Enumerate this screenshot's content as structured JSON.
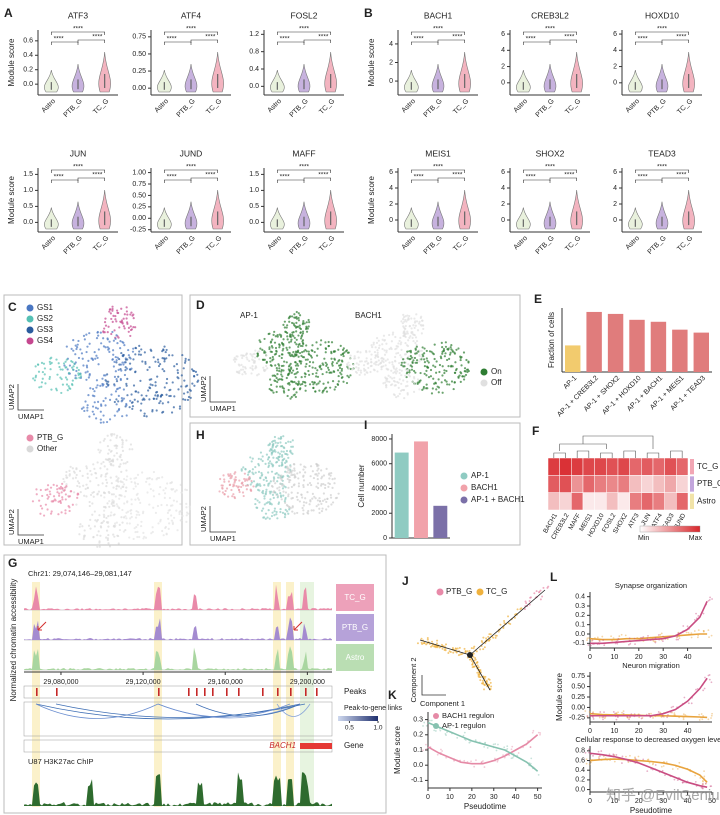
{
  "chart_data": [
    {
      "type": "violin",
      "panel": "A",
      "title": "ATF3",
      "ylabel": "Module score",
      "categories": [
        "Astro",
        "PTB_G",
        "TC_G"
      ],
      "colors": [
        "#e9f1dd",
        "#c7b2de",
        "#f3b4c0"
      ],
      "significance": "****",
      "ylim": [
        -0.15,
        0.75
      ],
      "yticks": [
        {
          "value": 0,
          "label": "0.0"
        },
        0.2,
        0.4,
        0.6
      ]
    },
    {
      "type": "violin",
      "title": "ATF4",
      "categories": [
        "Astro",
        "PTB_G",
        "TC_G"
      ],
      "colors": [
        "#e9f1dd",
        "#c7b2de",
        "#f3b4c0"
      ],
      "significance": "****",
      "ylim": [
        -0.1,
        0.85
      ],
      "yticks": [
        {
          "value": 0,
          "label": "0.00"
        },
        0.25,
        {
          "value": 0.5,
          "label": "0.50"
        },
        0.75
      ]
    },
    {
      "type": "violin",
      "title": "FOSL2",
      "categories": [
        "Astro",
        "PTB_G",
        "TC_G"
      ],
      "colors": [
        "#e9f1dd",
        "#c7b2de",
        "#f3b4c0"
      ],
      "significance": "****",
      "ylim": [
        -0.2,
        1.3
      ],
      "yticks": [
        {
          "value": 0,
          "label": "0.0"
        },
        0.4,
        0.8,
        1.2
      ]
    },
    {
      "type": "violin",
      "title": "JUN",
      "ylabel": "Module score",
      "categories": [
        "Astro",
        "PTB_G",
        "TC_G"
      ],
      "colors": [
        "#e9f1dd",
        "#c7b2de",
        "#f3b4c0"
      ],
      "significance": "****",
      "ylim": [
        -0.3,
        1.7
      ],
      "yticks": [
        {
          "value": 0,
          "label": "0.0"
        },
        0.5,
        {
          "value": 1,
          "label": "1.0"
        },
        1.5
      ]
    },
    {
      "type": "violin",
      "title": "JUND",
      "categories": [
        "Astro",
        "PTB_G",
        "TC_G"
      ],
      "colors": [
        "#e9f1dd",
        "#c7b2de",
        "#f3b4c0"
      ],
      "significance": "****",
      "ylim": [
        -0.3,
        1.1
      ],
      "yticks": [
        -0.25,
        {
          "value": 0,
          "label": "0.00"
        },
        0.25,
        {
          "value": 0.5,
          "label": "0.50"
        },
        0.75,
        {
          "value": 1,
          "label": "1.00"
        }
      ]
    },
    {
      "type": "violin",
      "title": "MAFF",
      "categories": [
        "Astro",
        "PTB_G",
        "TC_G"
      ],
      "colors": [
        "#e9f1dd",
        "#c7b2de",
        "#f3b4c0"
      ],
      "significance": "****",
      "ylim": [
        -0.3,
        1.7
      ],
      "yticks": [
        {
          "value": 0,
          "label": "0.0"
        },
        0.5,
        {
          "value": 1,
          "label": "1.0"
        },
        1.5
      ]
    },
    {
      "type": "violin",
      "panel": "B",
      "title": "BACH1",
      "ylabel": "Module score",
      "categories": [
        "Astro",
        "PTB_G",
        "TC_G"
      ],
      "colors": [
        "#e9f1dd",
        "#c7b2de",
        "#f3b4c0"
      ],
      "significance": "****",
      "ylim": [
        -1.5,
        5.5
      ],
      "yticks": [
        0,
        2,
        4
      ]
    },
    {
      "type": "violin",
      "title": "CREB3L2",
      "categories": [
        "Astro",
        "PTB_G",
        "TC_G"
      ],
      "colors": [
        "#e9f1dd",
        "#c7b2de",
        "#f3b4c0"
      ],
      "significance": "****",
      "ylim": [
        -1.5,
        6.5
      ],
      "yticks": [
        0,
        2,
        4,
        6
      ]
    },
    {
      "type": "violin",
      "title": "HOXD10",
      "categories": [
        "Astro",
        "PTB_G",
        "TC_G"
      ],
      "colors": [
        "#e9f1dd",
        "#c7b2de",
        "#f3b4c0"
      ],
      "significance": "****",
      "ylim": [
        -1.5,
        6.5
      ],
      "yticks": [
        0,
        2,
        4,
        6
      ]
    },
    {
      "type": "violin",
      "title": "MEIS1",
      "ylabel": "Module score",
      "categories": [
        "Astro",
        "PTB_G",
        "TC_G"
      ],
      "colors": [
        "#e9f1dd",
        "#c7b2de",
        "#f3b4c0"
      ],
      "significance": "****",
      "ylim": [
        -1.5,
        6.5
      ],
      "yticks": [
        0,
        2,
        4,
        6
      ]
    },
    {
      "type": "violin",
      "title": "SHOX2",
      "categories": [
        "Astro",
        "PTB_G",
        "TC_G"
      ],
      "colors": [
        "#e9f1dd",
        "#c7b2de",
        "#f3b4c0"
      ],
      "significance": "****",
      "ylim": [
        -1.5,
        6.5
      ],
      "yticks": [
        0,
        2,
        4,
        6
      ]
    },
    {
      "type": "violin",
      "title": "TEAD3",
      "categories": [
        "Astro",
        "PTB_G",
        "TC_G"
      ],
      "colors": [
        "#e9f1dd",
        "#c7b2de",
        "#f3b4c0"
      ],
      "significance": "****",
      "ylim": [
        -1.5,
        6.5
      ],
      "yticks": [
        0,
        2,
        4,
        6
      ]
    },
    {
      "type": "bar",
      "panel": "E",
      "ylabel": "Fraction of cells",
      "categories": [
        "AP-1",
        "AP-1 + CREB3L2",
        "AP-1 + SHOX2",
        "AP-1 + HOXD10",
        "AP-1 + BACH1",
        "AP-1 + MEIS1",
        "AP-1 + TEAD3"
      ],
      "values": [
        0.27,
        0.61,
        0.59,
        0.53,
        0.51,
        0.43,
        0.4
      ],
      "colors": [
        "#f2cb6e",
        "#e07c7c",
        "#e07c7c",
        "#e07c7c",
        "#e07c7c",
        "#e07c7c",
        "#e07c7c"
      ],
      "ylim": [
        0,
        0.65
      ]
    },
    {
      "type": "heatmap",
      "panel": "F",
      "rows": [
        "TC_G",
        "PTB_G",
        "Astro"
      ],
      "row_colors": [
        "#f2a6b4",
        "#c3a6dc",
        "#f1e3a8"
      ],
      "columns": [
        "BACH1",
        "CREB3L2",
        "MAFF",
        "MEIS1",
        "HOXD10",
        "FOSL2",
        "SHOX2",
        "ATF3",
        "JUN",
        "ATF4",
        "TEAD3",
        "JUND"
      ],
      "values": [
        [
          0.9,
          0.95,
          0.9,
          0.85,
          0.85,
          0.8,
          0.85,
          0.7,
          0.75,
          0.7,
          0.8,
          0.7
        ],
        [
          0.75,
          0.8,
          0.5,
          0.7,
          0.6,
          0.55,
          0.6,
          0.3,
          0.2,
          0.3,
          0.4,
          0.2
        ],
        [
          0.3,
          0.2,
          0.7,
          0.1,
          0.1,
          0.3,
          0.1,
          0.6,
          0.7,
          0.6,
          0.3,
          0.7
        ]
      ],
      "cmap": [
        "#ffffff",
        "#d8262b"
      ],
      "colorbar_labels": [
        "Min",
        "Max"
      ]
    },
    {
      "type": "bar",
      "panel": "I",
      "ylabel": "Cell number",
      "legend": true,
      "categories": [
        "AP-1",
        "BACH1",
        "AP-1 + BACH1"
      ],
      "values": [
        6900,
        7800,
        2600
      ],
      "colors": [
        "#8fcbc2",
        "#f1a2aa",
        "#7b70a8"
      ],
      "ylim": [
        0,
        8400
      ],
      "yticks": [
        0,
        2000,
        4000,
        6000,
        8000
      ]
    },
    {
      "type": "line",
      "panel": "K",
      "xlabel": "Pseudotime",
      "ylabel": "Module score",
      "x": [
        0,
        5,
        10,
        15,
        20,
        25,
        30,
        35,
        40,
        45,
        50
      ],
      "series": [
        {
          "name": "BACH1 regulon",
          "color": "#e58aa6",
          "values": [
            0.12,
            0.08,
            0.05,
            0.02,
            0.01,
            0.01,
            0.03,
            0.06,
            0.1,
            0.14,
            0.2
          ]
        },
        {
          "name": "AP-1 regulon",
          "color": "#86c2b0",
          "values": [
            0.28,
            0.25,
            0.22,
            0.19,
            0.16,
            0.14,
            0.12,
            0.1,
            0.06,
            0.02,
            -0.04
          ]
        }
      ],
      "xlim": [
        0,
        52
      ],
      "xticks": [
        0,
        10,
        20,
        30,
        40,
        50
      ],
      "ylim": [
        -0.15,
        0.35
      ],
      "yticks": [
        -0.1,
        {
          "value": 0,
          "label": "0.0"
        },
        0.1,
        0.2,
        0.3
      ]
    },
    {
      "type": "line",
      "panel": "L",
      "title": "Synapse organization",
      "x": [
        0,
        5,
        10,
        15,
        20,
        25,
        30,
        35,
        40,
        45,
        48
      ],
      "series": [
        {
          "color": "#e8a33d",
          "values": [
            -0.05,
            -0.06,
            -0.06,
            -0.05,
            -0.05,
            -0.04,
            -0.03,
            -0.02,
            -0.01,
            0,
            0
          ]
        },
        {
          "color": "#c94d82",
          "values": [
            -0.1,
            -0.1,
            -0.09,
            -0.08,
            -0.07,
            -0.06,
            -0.05,
            -0.02,
            0.05,
            0.18,
            0.35
          ]
        }
      ],
      "xlim": [
        0,
        50
      ],
      "xticks": [
        0,
        10,
        20,
        30,
        40
      ],
      "ylim": [
        -0.15,
        0.45
      ],
      "yticks": [
        -0.1,
        {
          "value": 0,
          "label": "0.0"
        },
        0.1,
        0.2,
        0.3,
        0.4
      ]
    },
    {
      "type": "line",
      "title": "Neuron migration",
      "ylabel": "Module score",
      "x": [
        0,
        5,
        10,
        15,
        20,
        25,
        30,
        35,
        40,
        45,
        48
      ],
      "series": [
        {
          "color": "#e8a33d",
          "values": [
            -0.15,
            -0.17,
            -0.18,
            -0.18,
            -0.19,
            -0.2,
            -0.2,
            -0.21,
            -0.22,
            -0.23,
            -0.24
          ]
        },
        {
          "color": "#c94d82",
          "values": [
            -0.2,
            -0.2,
            -0.2,
            -0.2,
            -0.2,
            -0.2,
            -0.15,
            -0.05,
            0.15,
            0.45,
            0.7
          ]
        }
      ],
      "xlim": [
        0,
        50
      ],
      "xticks": [
        0,
        10,
        20,
        30,
        40
      ],
      "ylim": [
        -0.35,
        0.85
      ],
      "yticks": [
        -0.25,
        {
          "value": 0,
          "label": "0.00"
        },
        0.25,
        {
          "value": 0.5,
          "label": "0.50"
        },
        0.75
      ]
    },
    {
      "type": "line",
      "title": "Cellular response to decreased oxygen levels",
      "xlabel": "Pseudotime",
      "x": [
        0,
        5,
        10,
        15,
        20,
        25,
        30,
        35,
        40,
        45,
        48
      ],
      "series": [
        {
          "color": "#e8a33d",
          "values": [
            0.6,
            0.62,
            0.63,
            0.62,
            0.6,
            0.58,
            0.55,
            0.5,
            0.42,
            0.3,
            0.15
          ]
        },
        {
          "color": "#c94d82",
          "values": [
            0.75,
            0.72,
            0.68,
            0.62,
            0.55,
            0.45,
            0.35,
            0.25,
            0.15,
            0.08,
            0.05
          ]
        }
      ],
      "xlim": [
        0,
        50
      ],
      "xticks": [
        0,
        10,
        20,
        30,
        40,
        50
      ],
      "ylim": [
        -0.05,
        0.9
      ],
      "yticks": [
        {
          "value": 0,
          "label": "0.0"
        },
        0.2,
        0.4,
        0.6,
        0.8
      ]
    }
  ],
  "figure": {
    "C": {
      "panel": "C",
      "legend": [
        "GS1",
        "GS2",
        "GS3",
        "GS4"
      ],
      "legend_colors": [
        "#4a77c2",
        "#55c0b4",
        "#2b5c9e",
        "#c5478f"
      ],
      "legend2": [
        "PTB_G",
        "Other"
      ],
      "legend2_colors": [
        "#e88aa9",
        "#d9d9d9"
      ],
      "xlabel": "UMAP1",
      "ylabel": "UMAP2"
    },
    "D": {
      "panel": "D",
      "titles": [
        "AP-1",
        "BACH1"
      ],
      "legend": [
        "On",
        "Off"
      ],
      "legend_colors": [
        "#2e7d32",
        "#e0e0e0"
      ],
      "xlabel": "UMAP1",
      "ylabel": "UMAP2"
    },
    "H": {
      "panel": "H",
      "xlabel": "UMAP1",
      "ylabel": "UMAP2"
    },
    "G": {
      "panel": "G",
      "region": "Chr21: 29,074,146–29,081,147",
      "ylabel": "Normalized chromatin accessibility",
      "tracks": [
        "TC_G",
        "PTB_G",
        "Astro"
      ],
      "track_colors": [
        "#e98aa9",
        "#a48bd0",
        "#a9d6a0"
      ],
      "xlim": [
        29062000,
        29212000
      ],
      "xticks": [
        {
          "value": 29080000,
          "label": "29,080,000"
        },
        {
          "value": 29120000,
          "label": "29,120,000"
        },
        {
          "value": 29160000,
          "label": "29,160,000"
        },
        {
          "value": 29200000,
          "label": "29,200,000"
        }
      ],
      "peaks": "Peaks",
      "links": "Peak-to-gene links",
      "colorbar_ticks": [
        0.5,
        {
          "value": 1,
          "label": "1.0"
        }
      ],
      "colorbar_range": [
        0.3,
        1
      ],
      "gene": "BACH1",
      "gene_label": "Gene",
      "chip": "U87 H3K27ac ChIP"
    },
    "J": {
      "panel": "J",
      "legend": [
        "PTB_G",
        "TC_G"
      ],
      "legend_colors": [
        "#e88aa9",
        "#f0b23e"
      ],
      "xlabel": "Component 1",
      "ylabel": "Component 2"
    },
    "watermark": "知乎 @EvilGenius"
  }
}
